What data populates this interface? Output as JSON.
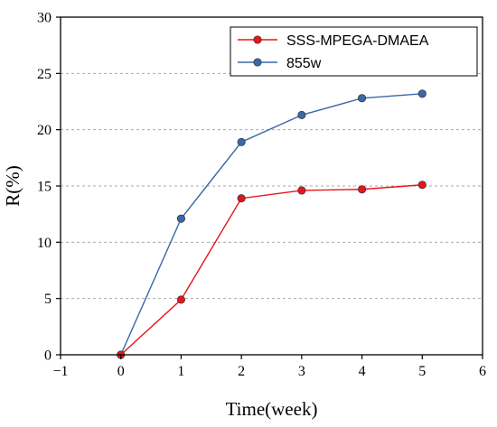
{
  "chart_data": {
    "type": "line",
    "title": "",
    "xlabel": "Time(week)",
    "ylabel": "R(%)",
    "xlim": [
      -1,
      6
    ],
    "ylim": [
      0,
      30
    ],
    "xticks": [
      -1,
      0,
      1,
      2,
      3,
      4,
      5,
      6
    ],
    "yticks": [
      0,
      5,
      10,
      15,
      20,
      25,
      30
    ],
    "xtick_labels": [
      "−1",
      "0",
      "1",
      "2",
      "3",
      "4",
      "5",
      "6"
    ],
    "ytick_labels": [
      "0",
      "5",
      "10",
      "15",
      "20",
      "25",
      "30"
    ],
    "grid": "horizontal dashed",
    "legend_position": "top-right",
    "series": [
      {
        "name": "SSS-MPEGA-DMAEA",
        "color": "#e8141c",
        "x": [
          0,
          1,
          2,
          3,
          4,
          5
        ],
        "values": [
          0,
          4.9,
          13.9,
          14.6,
          14.7,
          15.1
        ]
      },
      {
        "name": "855w",
        "color": "#3a68a8",
        "x": [
          0,
          1,
          2,
          3,
          4,
          5
        ],
        "values": [
          0,
          12.1,
          18.9,
          21.3,
          22.8,
          23.2
        ]
      }
    ]
  }
}
